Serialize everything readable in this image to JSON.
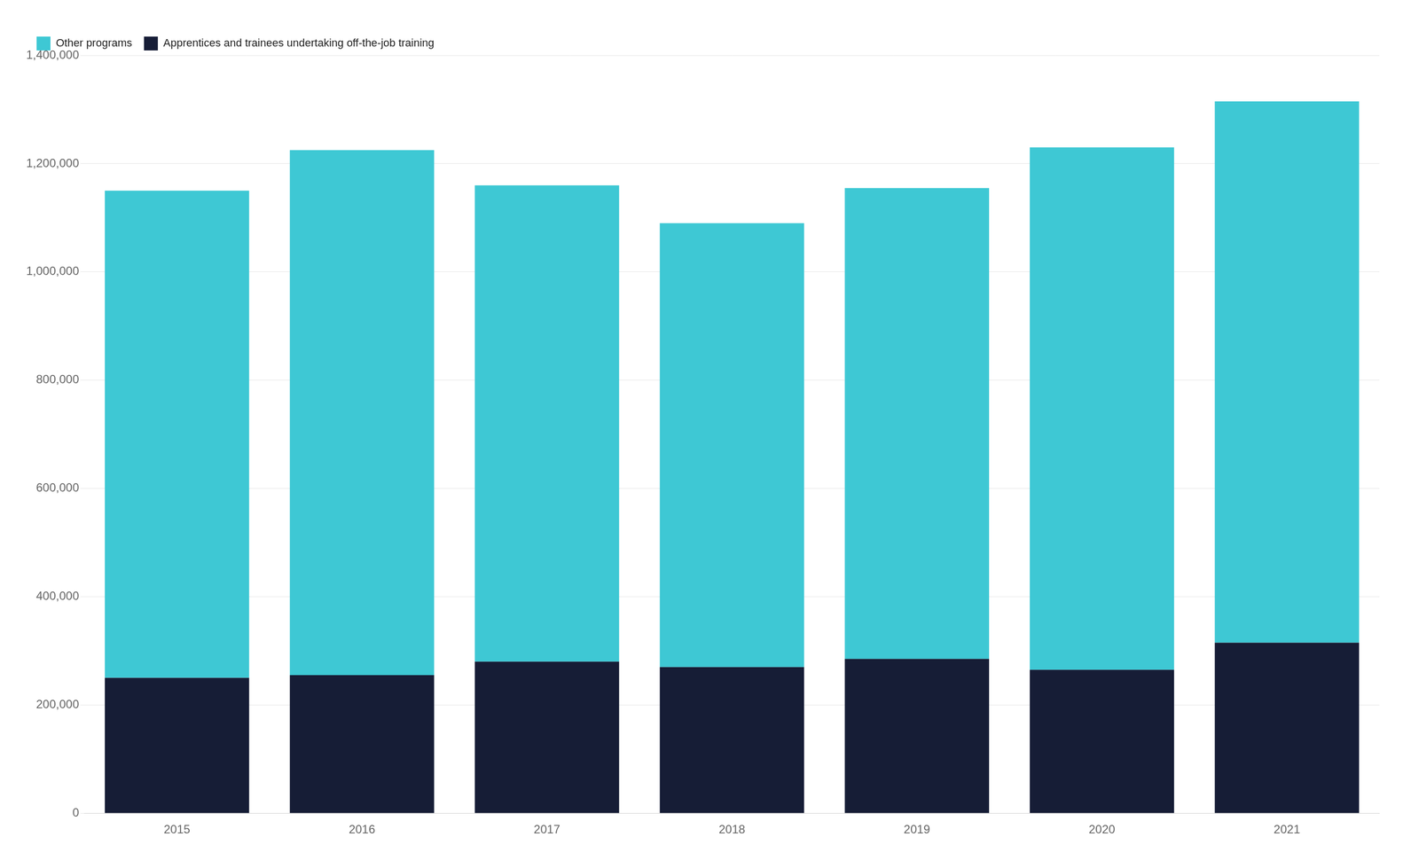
{
  "chart_data": {
    "type": "bar",
    "stacked": true,
    "categories": [
      "2015",
      "2016",
      "2017",
      "2018",
      "2019",
      "2020",
      "2021"
    ],
    "series": [
      {
        "name": "Apprentices and trainees undertaking off-the-job training",
        "color": "#161d36",
        "values": [
          250000,
          255000,
          280000,
          270000,
          285000,
          265000,
          315000
        ]
      },
      {
        "name": "Other programs",
        "color": "#3ec8d4",
        "values": [
          900000,
          970000,
          880000,
          820000,
          870000,
          965000,
          1000000
        ]
      }
    ],
    "ylim": [
      0,
      1400000
    ],
    "yticks": [
      0,
      {
        "value": 200000,
        "label": "200,000"
      },
      {
        "value": 400000,
        "label": "400,000"
      },
      {
        "value": 600000,
        "label": "600,000"
      },
      {
        "value": 800000,
        "label": "800,000"
      },
      {
        "value": 1000000,
        "label": "1,000,000"
      },
      {
        "value": 1200000,
        "label": "1,200,000"
      },
      {
        "value": 1400000,
        "label": "1,400,000"
      }
    ],
    "grid": true,
    "legend": "upper left"
  }
}
